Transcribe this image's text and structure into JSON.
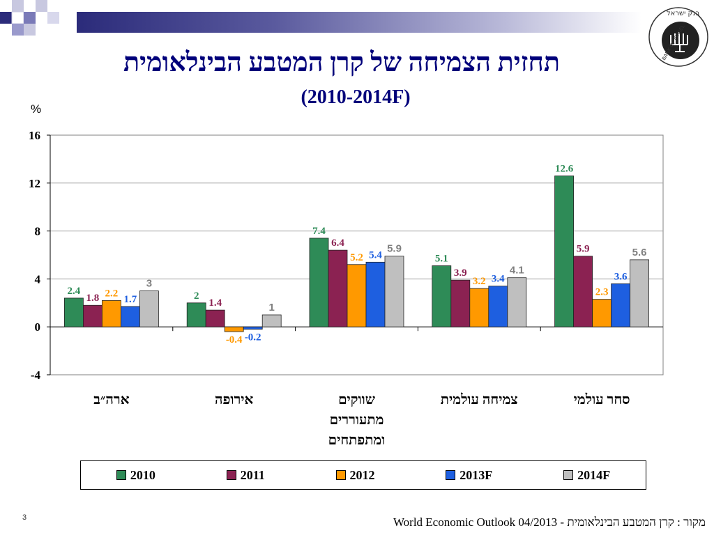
{
  "page": {
    "title": "תחזית הצמיחה של קרן המטבע הבינלאומית",
    "subtitle": "(2010-2014F)",
    "unit": "%",
    "page_number": "3",
    "source": "מקור : קרן המטבע הבינלאומית - World Economic Outlook 04/2013",
    "logo_text": "בנק ישראל BANK OF ISRAEL"
  },
  "chart_data": {
    "type": "bar",
    "categories": [
      "ארה\"ב",
      "אירופה",
      "שווקים מתעוררים ומתפתחים",
      "צמיחה עולמית",
      "סחר עולמי"
    ],
    "category_lines": [
      [
        "ארה״ב"
      ],
      [
        "אירופה"
      ],
      [
        "שווקים",
        "מתעוררים",
        "ומתפתחים"
      ],
      [
        "צמיחה עולמית"
      ],
      [
        "סחר עולמי"
      ]
    ],
    "series": [
      {
        "name": "2010",
        "color": "#2e8b57",
        "label_color": "#2e8b57",
        "values": [
          2.4,
          2,
          7.4,
          5.1,
          12.6
        ],
        "labels": [
          "2.4",
          "2",
          "7.4",
          "5.1",
          "12.6"
        ]
      },
      {
        "name": "2011",
        "color": "#8b2252",
        "label_color": "#8b2252",
        "values": [
          1.8,
          1.4,
          6.4,
          3.9,
          5.9
        ],
        "labels": [
          "1.8",
          "1.4",
          "6.4",
          "3.9",
          "5.9"
        ]
      },
      {
        "name": "2012",
        "color": "#ff9900",
        "label_color": "#ff9900",
        "values": [
          2.2,
          -0.4,
          5.2,
          3.2,
          2.3
        ],
        "labels": [
          "2.2",
          "-0.4",
          "5.2",
          "3.2",
          "2.3"
        ]
      },
      {
        "name": "2013F",
        "color": "#1e5fe0",
        "label_color": "#1e5fe0",
        "values": [
          1.7,
          -0.2,
          5.4,
          3.4,
          3.6
        ],
        "labels": [
          "1.7",
          "-0.2",
          "5.4",
          "3.4",
          "3.6"
        ]
      },
      {
        "name": "2014F",
        "color": "#bfbfbf",
        "label_color": "#808080",
        "values": [
          3,
          1,
          5.9,
          4.1,
          5.6
        ],
        "labels": [
          "3",
          "1",
          "5.9",
          "4.1",
          "5.6"
        ]
      }
    ],
    "ylim": [
      -4,
      16
    ],
    "yticks": [
      "-4",
      "0",
      "4",
      "8",
      "12",
      "16"
    ],
    "ytick_values": [
      -4,
      0,
      4,
      8,
      12,
      16
    ],
    "grid": true,
    "legend_position": "bottom"
  }
}
